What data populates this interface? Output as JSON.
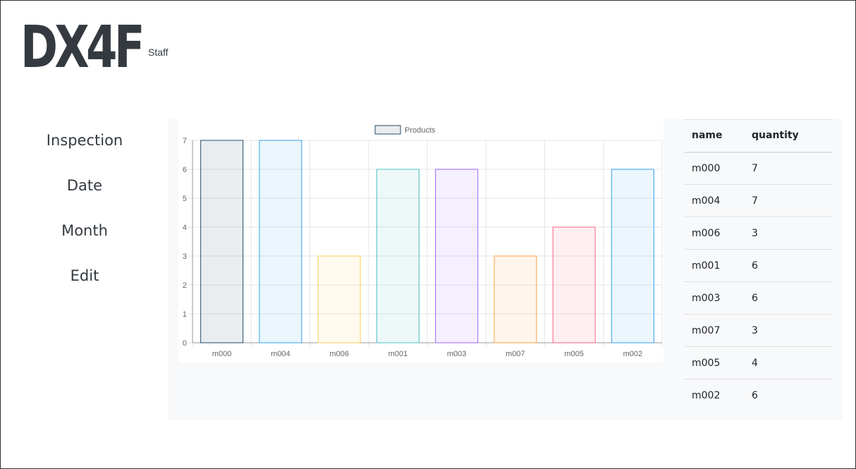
{
  "brand": {
    "logo_text": "DX4F",
    "role": "Staff"
  },
  "nav": {
    "items": [
      {
        "label": "Inspection"
      },
      {
        "label": "Date"
      },
      {
        "label": "Month"
      },
      {
        "label": "Edit"
      }
    ]
  },
  "chart_data": {
    "type": "bar",
    "categories": [
      "m000",
      "m004",
      "m006",
      "m001",
      "m003",
      "m007",
      "m005",
      "m002"
    ],
    "series": [
      {
        "name": "Products",
        "values": [
          7,
          7,
          3,
          6,
          6,
          3,
          4,
          6
        ]
      }
    ],
    "ylim": [
      0,
      7
    ],
    "yticks": [
      0,
      1,
      2,
      3,
      4,
      5,
      6,
      7
    ],
    "grid": true,
    "legend": "top-center",
    "bar_colors": [
      "#244b68",
      "#36a2eb",
      "#ffcd56",
      "#4bc0c0",
      "#9966ff",
      "#ff9f40",
      "#ff6384",
      "#36a2eb"
    ]
  },
  "table": {
    "headers": [
      "name",
      "quantity"
    ],
    "rows": [
      [
        "m000",
        "7"
      ],
      [
        "m004",
        "7"
      ],
      [
        "m006",
        "3"
      ],
      [
        "m001",
        "6"
      ],
      [
        "m003",
        "6"
      ],
      [
        "m007",
        "3"
      ],
      [
        "m005",
        "4"
      ],
      [
        "m002",
        "6"
      ]
    ]
  }
}
